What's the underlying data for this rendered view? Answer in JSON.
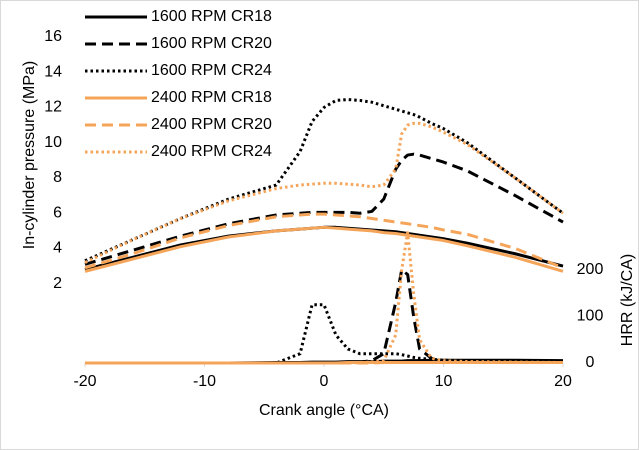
{
  "chart_data": {
    "type": "line",
    "xlabel": "Crank angle (°CA)",
    "ylabel": "In-cylinder pressure (MPa)",
    "y2label": "HRR (kJ/CA)",
    "legend": "upper left",
    "x": [
      -20,
      -16,
      -12,
      -8,
      -4,
      -2,
      -1,
      0,
      1,
      2,
      3,
      4,
      5,
      6,
      6.5,
      7,
      7.5,
      8,
      9,
      10,
      12,
      16,
      20
    ],
    "xlim": [
      -20,
      20
    ],
    "xticks": [
      -20,
      -10,
      0,
      10,
      20
    ],
    "ylim": [
      -2.5,
      16
    ],
    "yticks": [
      2,
      4,
      6,
      8,
      10,
      12,
      14,
      16
    ],
    "y2lim": [
      0,
      700
    ],
    "y2ticks": [
      0,
      100,
      200
    ],
    "series": [
      {
        "name": "1600 RPM CR18",
        "color": "#000000",
        "dash": "solid",
        "values": [
          2.8,
          3.5,
          4.2,
          4.7,
          5.0,
          5.1,
          5.15,
          5.2,
          5.2,
          5.15,
          5.1,
          5.05,
          5.0,
          4.95,
          4.9,
          4.85,
          4.8,
          4.75,
          4.65,
          4.55,
          4.3,
          3.7,
          3.0
        ],
        "hrr": [
          0,
          0,
          0,
          0,
          1,
          1,
          2,
          2,
          2,
          3,
          3,
          3,
          4,
          4,
          4,
          5,
          5,
          5,
          6,
          6,
          6,
          6,
          5
        ]
      },
      {
        "name": "1600 RPM CR20",
        "color": "#000000",
        "dash": "dashed",
        "values": [
          3.1,
          3.9,
          4.7,
          5.4,
          5.9,
          6.0,
          6.05,
          6.05,
          6.05,
          6.05,
          6.0,
          6.1,
          6.8,
          8.5,
          9.0,
          9.3,
          9.35,
          9.3,
          9.1,
          8.9,
          8.4,
          7.0,
          5.5
        ],
        "hrr": [
          0,
          0,
          0,
          0,
          0,
          0,
          0,
          0,
          0,
          0,
          2,
          5,
          20,
          130,
          200,
          190,
          100,
          30,
          10,
          5,
          3,
          2,
          1
        ]
      },
      {
        "name": "1600 RPM CR24",
        "color": "#000000",
        "dash": "dotted",
        "values": [
          3.3,
          4.5,
          5.7,
          6.8,
          7.6,
          9.5,
          11.2,
          12.0,
          12.4,
          12.45,
          12.4,
          12.3,
          12.1,
          11.9,
          11.8,
          11.7,
          11.6,
          11.45,
          11.1,
          10.8,
          10.0,
          8.0,
          6.0
        ],
        "hrr": [
          0,
          0,
          0,
          0,
          0,
          20,
          125,
          125,
          60,
          30,
          20,
          20,
          20,
          20,
          18,
          15,
          12,
          10,
          8,
          6,
          4,
          3,
          2
        ]
      },
      {
        "name": "2400 RPM CR18",
        "color": "#f5a55a",
        "dash": "solid",
        "values": [
          2.7,
          3.4,
          4.1,
          4.65,
          5.0,
          5.1,
          5.15,
          5.2,
          5.15,
          5.1,
          5.05,
          5.0,
          4.9,
          4.85,
          4.8,
          4.75,
          4.7,
          4.65,
          4.55,
          4.45,
          4.15,
          3.5,
          2.7
        ],
        "hrr": [
          0,
          0,
          0,
          0,
          0,
          0,
          0,
          0,
          0,
          1,
          1,
          1,
          1,
          1,
          1,
          1,
          1,
          1,
          1,
          1,
          1,
          1,
          1
        ]
      },
      {
        "name": "2400 RPM CR20",
        "color": "#f5a55a",
        "dash": "dashed",
        "values": [
          2.9,
          3.7,
          4.6,
          5.3,
          5.8,
          5.9,
          5.95,
          5.95,
          5.9,
          5.85,
          5.8,
          5.7,
          5.6,
          5.5,
          5.45,
          5.4,
          5.35,
          5.3,
          5.2,
          5.05,
          4.8,
          4.0,
          2.9
        ],
        "hrr": [
          0,
          0,
          0,
          0,
          0,
          0,
          0,
          0,
          0,
          0,
          0,
          0,
          1,
          1,
          1,
          1,
          1,
          1,
          1,
          1,
          1,
          1,
          1
        ]
      },
      {
        "name": "2400 RPM CR24",
        "color": "#f5a55a",
        "dash": "dotted",
        "values": [
          3.2,
          4.5,
          5.7,
          6.7,
          7.4,
          7.6,
          7.65,
          7.7,
          7.7,
          7.65,
          7.6,
          7.5,
          7.6,
          8.5,
          10.5,
          11.0,
          11.1,
          11.1,
          10.9,
          10.6,
          9.9,
          8.0,
          6.0
        ],
        "hrr": [
          0,
          0,
          0,
          0,
          0,
          0,
          0,
          0,
          0,
          0,
          1,
          2,
          5,
          60,
          200,
          280,
          150,
          50,
          10,
          5,
          3,
          2,
          1
        ]
      }
    ]
  }
}
